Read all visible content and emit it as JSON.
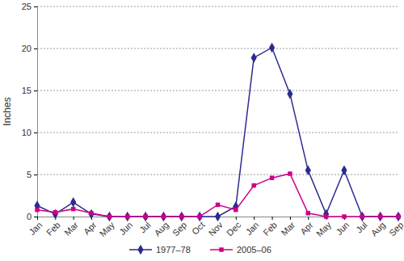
{
  "chart_data": {
    "type": "line",
    "y_label": "Inches",
    "categories": [
      "Jan",
      "Feb",
      "Mar",
      "Apr",
      "May",
      "Jun",
      "Jul",
      "Aug",
      "Sep",
      "Oct",
      "Nov",
      "Dec",
      "Jan",
      "Feb",
      "Mar",
      "Apr",
      "May",
      "Jun",
      "Jul",
      "Aug",
      "Sep"
    ],
    "series": [
      {
        "name": "1977–78",
        "color": "#2b2b8f",
        "marker": "diamond",
        "values": [
          1.3,
          0.3,
          1.7,
          0.3,
          0,
          0,
          0,
          0,
          0,
          0,
          0,
          1.2,
          18.9,
          20.1,
          14.6,
          5.5,
          0.3,
          5.5,
          0,
          0,
          0
        ]
      },
      {
        "name": "2005–06",
        "color": "#cc0088",
        "marker": "square",
        "values": [
          0.8,
          0.5,
          0.9,
          0.4,
          0,
          0,
          0,
          0,
          0,
          0,
          1.4,
          0.8,
          3.7,
          4.6,
          5.1,
          0.4,
          0,
          0,
          0,
          0,
          0
        ]
      }
    ],
    "ylim": [
      0,
      25
    ],
    "yticks": [
      0,
      5,
      10,
      15,
      20,
      25
    ],
    "grid": true,
    "legend": "bottom"
  }
}
